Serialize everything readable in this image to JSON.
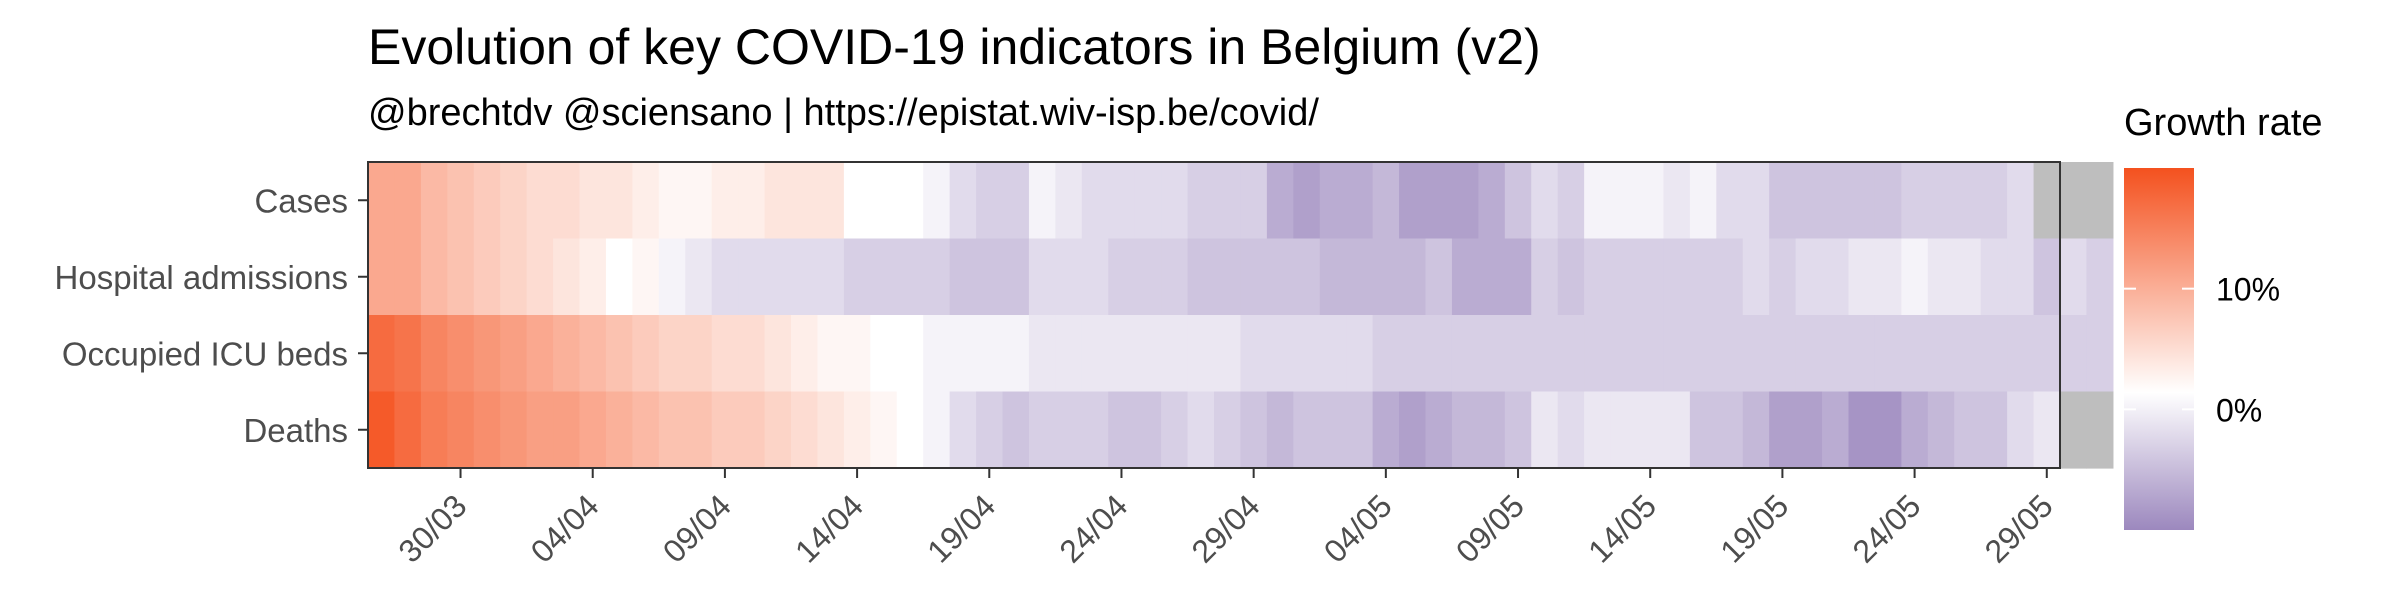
{
  "chart_data": {
    "type": "heatmap",
    "title": "Evolution of key COVID-19 indicators in Belgium (v2)",
    "subtitle": "@brechtdv @sciensano | https://epistat.wiv-isp.be/covid/",
    "legend": {
      "title": "Growth rate",
      "placement": "right",
      "ticks": [
        "10%",
        "0%"
      ],
      "tick_values": [
        0.1,
        0.0
      ],
      "range": [
        -0.1,
        0.2
      ],
      "colors": {
        "high": "#F4511E",
        "mid": "#FFFFFF",
        "low": "#9C88BE",
        "missing": "#BEBEBE"
      }
    },
    "x_dates": [
      "27/03",
      "28/03",
      "29/03",
      "30/03",
      "31/03",
      "01/04",
      "02/04",
      "03/04",
      "04/04",
      "05/04",
      "06/04",
      "07/04",
      "08/04",
      "09/04",
      "10/04",
      "11/04",
      "12/04",
      "13/04",
      "14/04",
      "15/04",
      "16/04",
      "17/04",
      "18/04",
      "19/04",
      "20/04",
      "21/04",
      "22/04",
      "23/04",
      "24/04",
      "25/04",
      "26/04",
      "27/04",
      "28/04",
      "29/04",
      "30/04",
      "01/05",
      "02/05",
      "03/05",
      "04/05",
      "05/05",
      "06/05",
      "07/05",
      "08/05",
      "09/05",
      "10/05",
      "11/05",
      "12/05",
      "13/05",
      "14/05",
      "15/05",
      "16/05",
      "17/05",
      "18/05",
      "19/05",
      "20/05",
      "21/05",
      "22/05",
      "23/05",
      "24/05",
      "25/05",
      "26/05",
      "27/05",
      "28/05",
      "29/05"
    ],
    "x_tick_labels": [
      "30/03",
      "04/04",
      "09/04",
      "14/04",
      "19/04",
      "24/04",
      "29/04",
      "04/05",
      "09/05",
      "14/05",
      "19/05",
      "24/05",
      "29/05"
    ],
    "y_categories": [
      "Cases",
      "Hospital admissions",
      "Occupied ICU beds",
      "Deaths"
    ],
    "values": [
      [
        0.1,
        0.1,
        0.08,
        0.07,
        0.06,
        0.05,
        0.04,
        0.04,
        0.03,
        0.03,
        0.02,
        0.01,
        0.01,
        0.02,
        0.02,
        0.03,
        0.03,
        0.03,
        0.0,
        0.0,
        0.0,
        -0.01,
        -0.03,
        -0.04,
        -0.04,
        -0.01,
        -0.02,
        -0.03,
        -0.03,
        -0.03,
        -0.03,
        -0.04,
        -0.04,
        -0.04,
        -0.07,
        -0.08,
        -0.07,
        -0.07,
        -0.06,
        -0.08,
        -0.08,
        -0.08,
        -0.07,
        -0.05,
        -0.03,
        -0.04,
        -0.01,
        -0.01,
        -0.01,
        -0.02,
        -0.01,
        -0.03,
        -0.03,
        -0.05,
        -0.05,
        -0.05,
        -0.05,
        -0.05,
        -0.04,
        -0.04,
        -0.04,
        -0.04,
        -0.03,
        null,
        null,
        null
      ],
      [
        0.1,
        0.1,
        0.08,
        0.07,
        0.06,
        0.05,
        0.04,
        0.03,
        0.02,
        0.0,
        0.01,
        -0.01,
        -0.02,
        -0.03,
        -0.03,
        -0.03,
        -0.03,
        -0.03,
        -0.04,
        -0.04,
        -0.04,
        -0.04,
        -0.05,
        -0.05,
        -0.05,
        -0.03,
        -0.03,
        -0.03,
        -0.04,
        -0.04,
        -0.04,
        -0.05,
        -0.05,
        -0.05,
        -0.05,
        -0.05,
        -0.06,
        -0.06,
        -0.06,
        -0.06,
        -0.05,
        -0.07,
        -0.07,
        -0.07,
        -0.04,
        -0.05,
        -0.04,
        -0.04,
        -0.04,
        -0.04,
        -0.04,
        -0.04,
        -0.03,
        -0.04,
        -0.03,
        -0.03,
        -0.02,
        -0.02,
        -0.01,
        -0.02,
        -0.02,
        -0.03,
        -0.03,
        -0.05,
        -0.03,
        -0.04
      ],
      [
        0.17,
        0.16,
        0.14,
        0.13,
        0.12,
        0.11,
        0.1,
        0.09,
        0.08,
        0.07,
        0.06,
        0.05,
        0.05,
        0.04,
        0.04,
        0.03,
        0.02,
        0.01,
        0.01,
        0.0,
        0.0,
        -0.01,
        -0.01,
        -0.01,
        -0.01,
        -0.02,
        -0.02,
        -0.02,
        -0.02,
        -0.02,
        -0.02,
        -0.02,
        -0.02,
        -0.03,
        -0.03,
        -0.03,
        -0.03,
        -0.03,
        -0.04,
        -0.04,
        -0.04,
        -0.04,
        -0.04,
        -0.04,
        -0.04,
        -0.04,
        -0.04,
        -0.04,
        -0.04,
        -0.04,
        -0.04,
        -0.04,
        -0.04,
        -0.04,
        -0.04,
        -0.04,
        -0.04,
        -0.04,
        -0.04,
        -0.04,
        -0.04,
        -0.04,
        -0.04,
        -0.04,
        -0.04,
        -0.04
      ],
      [
        0.19,
        0.17,
        0.15,
        0.14,
        0.13,
        0.12,
        0.11,
        0.11,
        0.1,
        0.09,
        0.08,
        0.07,
        0.07,
        0.06,
        0.06,
        0.05,
        0.04,
        0.03,
        0.02,
        0.01,
        0.0,
        -0.01,
        -0.03,
        -0.04,
        -0.05,
        -0.04,
        -0.04,
        -0.04,
        -0.05,
        -0.05,
        -0.04,
        -0.03,
        -0.04,
        -0.05,
        -0.06,
        -0.05,
        -0.05,
        -0.05,
        -0.07,
        -0.08,
        -0.07,
        -0.06,
        -0.06,
        -0.05,
        -0.02,
        -0.03,
        -0.02,
        -0.02,
        -0.02,
        -0.02,
        -0.05,
        -0.05,
        -0.06,
        -0.08,
        -0.08,
        -0.07,
        -0.09,
        -0.09,
        -0.07,
        -0.06,
        -0.05,
        -0.05,
        -0.03,
        -0.02,
        null,
        null
      ]
    ]
  }
}
